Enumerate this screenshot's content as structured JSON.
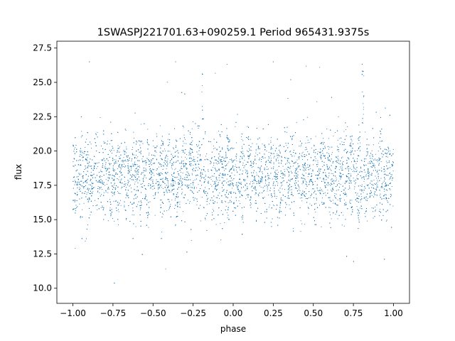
{
  "chart_data": {
    "type": "scatter",
    "title": "1SWASPJ221701.63+090259.1 Period 965431.9375s",
    "xlabel": "phase",
    "ylabel": "flux",
    "xlim": [
      -1.1,
      1.1
    ],
    "ylim": [
      8.9,
      28.0
    ],
    "x_ticks": [
      -1.0,
      -0.75,
      -0.5,
      -0.25,
      0.0,
      0.25,
      0.5,
      0.75,
      1.0
    ],
    "x_tick_labels": [
      "−1.00",
      "−0.75",
      "−0.50",
      "−0.25",
      "0.00",
      "0.25",
      "0.50",
      "0.75",
      "1.00"
    ],
    "y_ticks": [
      10.0,
      12.5,
      15.0,
      17.5,
      20.0,
      22.5,
      25.0,
      27.5
    ],
    "y_tick_labels": [
      "10.0",
      "12.5",
      "15.0",
      "17.5",
      "20.0",
      "22.5",
      "25.0",
      "27.5"
    ],
    "grid": false,
    "legend": "none",
    "marker_color": "#1f77b4",
    "series": [
      {
        "points_estimated": true,
        "description_points": {
          "x": [
            -0.98,
            -0.95,
            -0.92,
            -0.88,
            -0.85,
            -0.82,
            -0.78,
            -0.75,
            -0.72,
            -0.68,
            -0.65,
            -0.6,
            -0.55,
            -0.5,
            -0.45,
            -0.4,
            -0.35,
            -0.3,
            -0.25,
            -0.2,
            -0.15,
            -0.1,
            -0.05,
            0.0,
            0.05,
            0.1,
            0.15,
            0.2,
            0.25,
            0.3,
            0.35,
            0.4,
            0.45,
            0.5,
            0.55,
            0.6,
            0.65,
            0.7,
            0.75,
            0.8,
            0.85,
            0.9,
            0.95,
            0.98
          ],
          "y": [
            18.5,
            19.0,
            17.5,
            18.2,
            16.2,
            19.5,
            17.0,
            18.8,
            16.0,
            19.2,
            17.6,
            18.4,
            16.5,
            19.0,
            17.8,
            18.1,
            16.4,
            19.3,
            17.2,
            19.6,
            17.0,
            18.6,
            16.8,
            18.9,
            17.4,
            18.3,
            16.3,
            19.1,
            17.7,
            18.5,
            16.1,
            19.4,
            17.1,
            18.7,
            16.6,
            19.0,
            17.5,
            18.2,
            16.2,
            19.5,
            17.3,
            18.0,
            16.4,
            19.2
          ]
        }
      }
    ]
  }
}
